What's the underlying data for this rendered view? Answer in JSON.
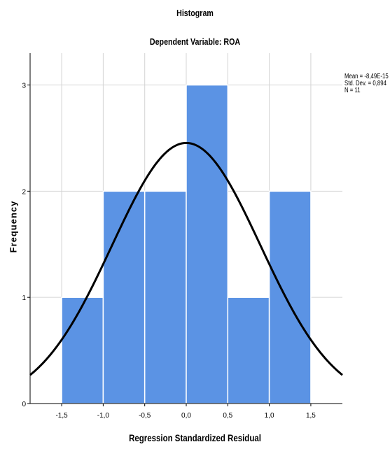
{
  "chart_data": {
    "type": "bar",
    "title": "Histogram",
    "subtitle": "Dependent Variable: ROA",
    "xlabel": "Regression Standardized Residual",
    "ylabel": "Frequency",
    "bins": [
      {
        "start": -1.5,
        "end": -1.0,
        "count": 1
      },
      {
        "start": -1.0,
        "end": -0.5,
        "count": 2
      },
      {
        "start": -0.5,
        "end": 0.0,
        "count": 2
      },
      {
        "start": 0.0,
        "end": 0.5,
        "count": 3
      },
      {
        "start": 0.5,
        "end": 1.0,
        "count": 1
      },
      {
        "start": 1.0,
        "end": 1.5,
        "count": 2
      }
    ],
    "xlim": [
      -1.88,
      1.88
    ],
    "ylim": [
      0,
      3.3
    ],
    "x_ticks": [
      "-1,5",
      "-1,0",
      "-0,5",
      "0,0",
      "0,5",
      "1,0",
      "1,5"
    ],
    "x_tick_values": [
      -1.5,
      -1.0,
      -0.5,
      0.0,
      0.5,
      1.0,
      1.5
    ],
    "y_ticks": [
      "0",
      "1",
      "2",
      "3"
    ],
    "y_tick_values": [
      0,
      1,
      2,
      3
    ],
    "normal_curve": {
      "mean": 0,
      "sd": 0.894,
      "n": 11,
      "bin_width": 0.5
    },
    "stats": [
      "Mean = -8,49E-15",
      "Std. Dev. = 0,894",
      "N = 11"
    ],
    "grid": true,
    "colors": {
      "bar": "#5b93e4",
      "bar_edge": "#ffffff",
      "curve": "#000000",
      "grid": "#d4d4d4"
    }
  }
}
